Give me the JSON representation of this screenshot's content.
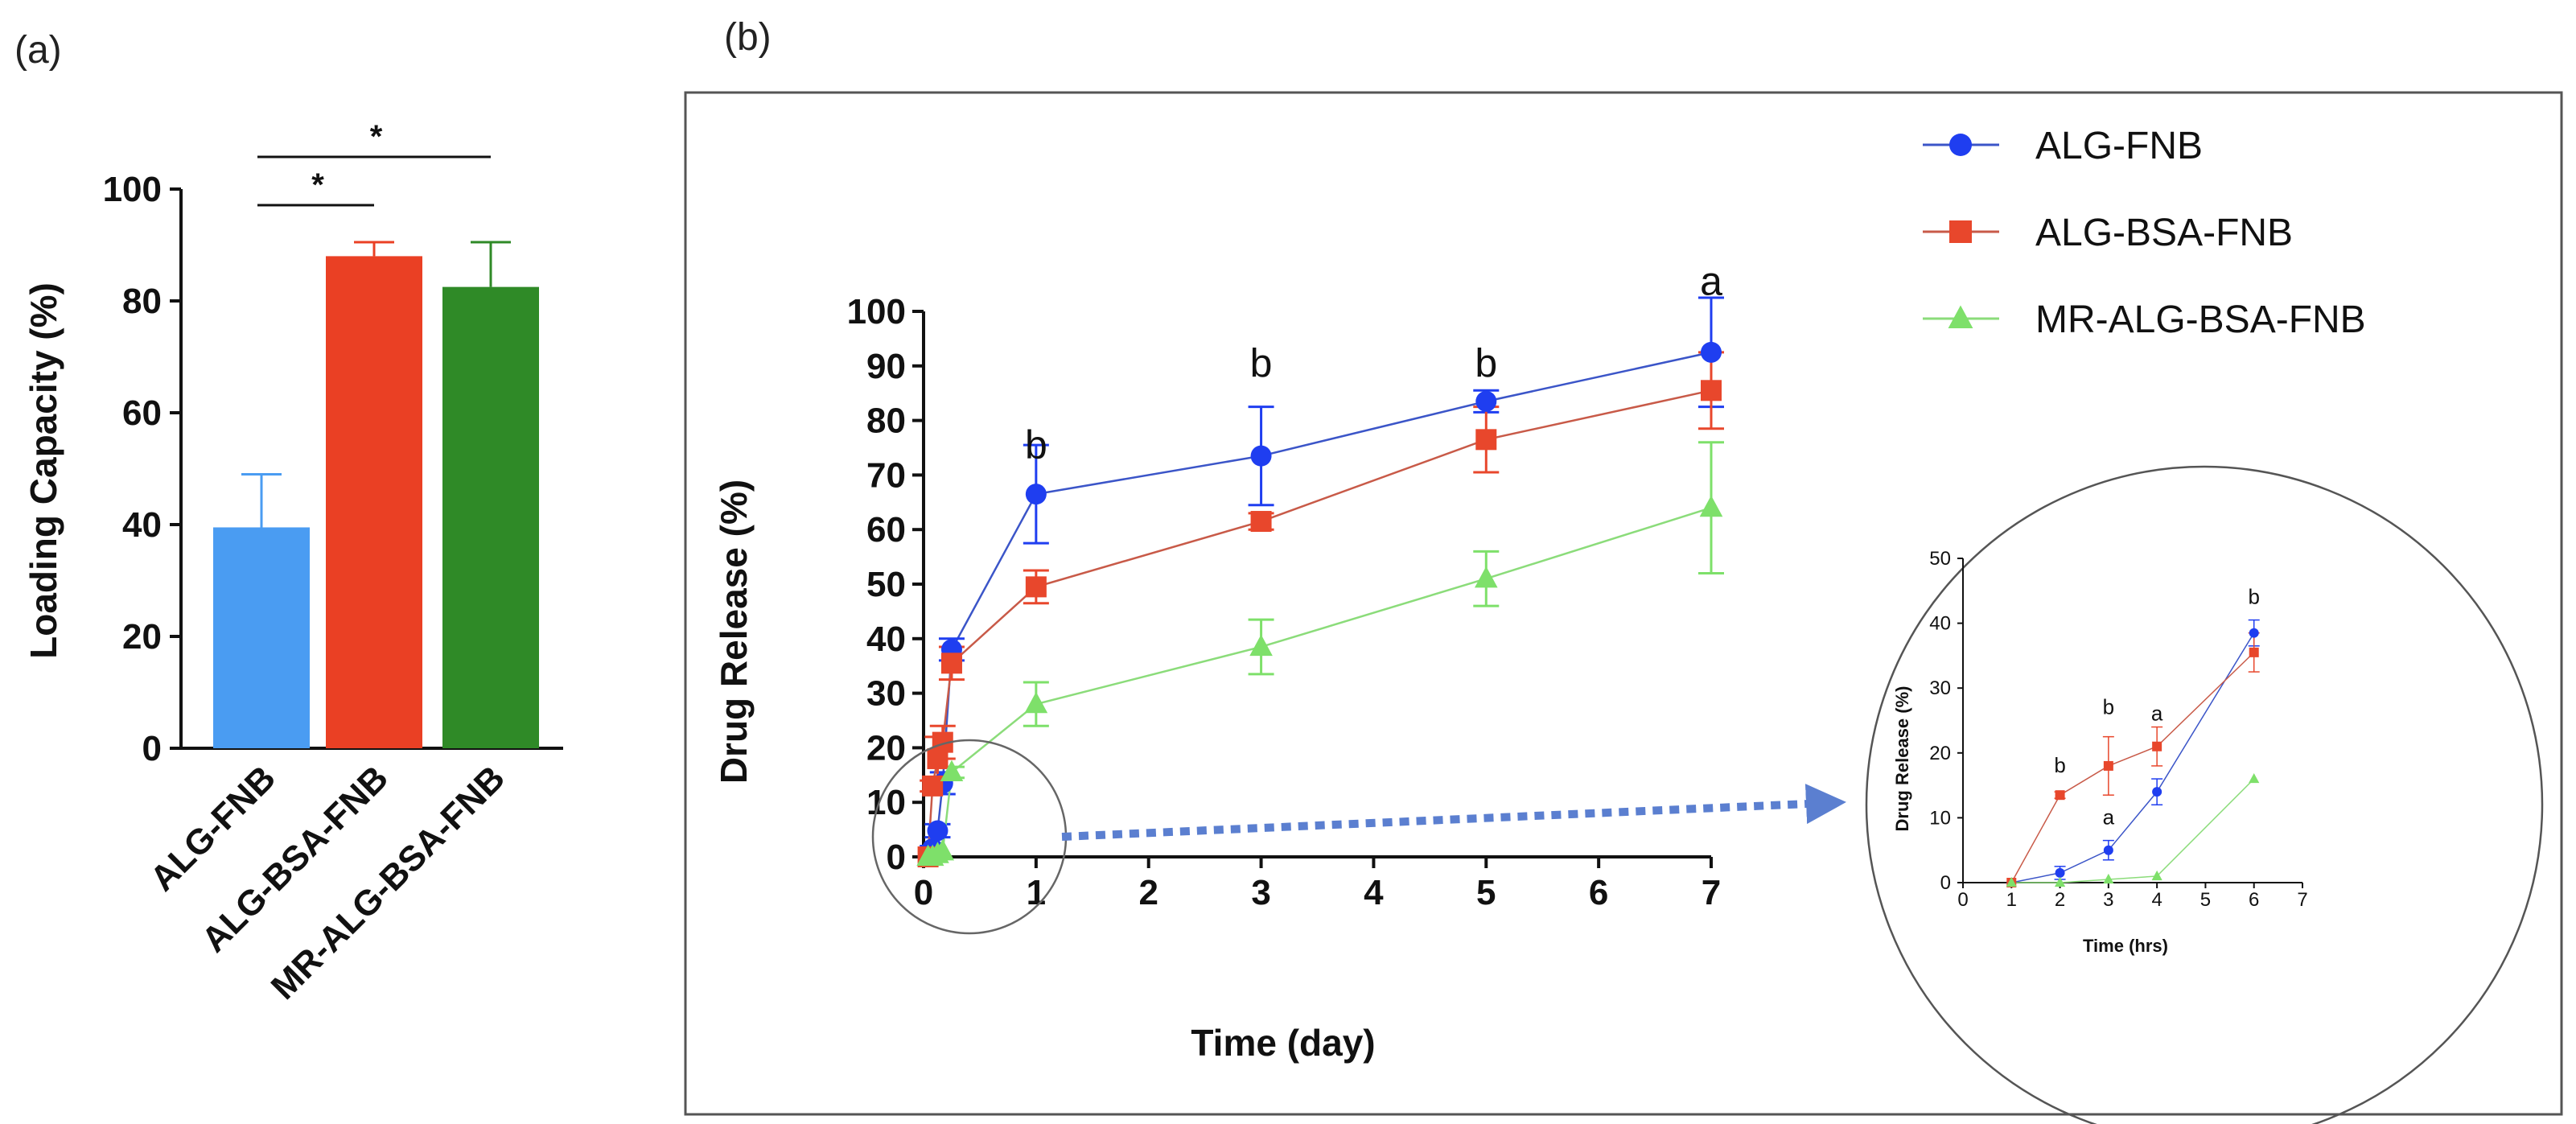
{
  "panel_labels": {
    "a": "(a)",
    "b": "(b)"
  },
  "chart_data": [
    {
      "id": "a",
      "type": "bar",
      "title": "",
      "xlabel": "",
      "ylabel": "Loading Capacity (%)",
      "ylim": [
        0,
        100
      ],
      "yticks": [
        "0",
        "20",
        "40",
        "60",
        "80",
        "100"
      ],
      "categories": [
        "ALG-FNB",
        "ALG-BSA-FNB",
        "MR-ALG-BSA-FNB"
      ],
      "values": [
        39.5,
        88,
        82.5
      ],
      "errors": [
        9.5,
        2.5,
        8
      ],
      "colors": [
        "#4a9cf2",
        "#ea4024",
        "#2f8a27"
      ],
      "significance": [
        {
          "pair": [
            0,
            1
          ],
          "label": "*"
        },
        {
          "pair": [
            0,
            2
          ],
          "label": "*"
        }
      ]
    },
    {
      "id": "b",
      "type": "line",
      "xlabel": "Time (day)",
      "ylabel": "Drug Release (%)",
      "xlim": [
        0,
        7
      ],
      "ylim": [
        0,
        100
      ],
      "xticks": [
        "0",
        "1",
        "2",
        "3",
        "4",
        "5",
        "6",
        "7"
      ],
      "yticks": [
        "0",
        "10",
        "20",
        "30",
        "40",
        "50",
        "60",
        "70",
        "80",
        "90",
        "100"
      ],
      "series": [
        {
          "name": "ALG-FNB",
          "color": "#1f3ef0",
          "line_color": "#3b55c8",
          "marker": "circle",
          "x": [
            0.04,
            0.08,
            0.125,
            0.17,
            0.25,
            1,
            3,
            5,
            7
          ],
          "y": [
            0,
            1.5,
            4.8,
            13.5,
            38,
            66.5,
            73.5,
            83.5,
            92.5
          ],
          "err": [
            0,
            0.5,
            1.2,
            2,
            2,
            9,
            9,
            2,
            10
          ]
        },
        {
          "name": "ALG-BSA-FNB",
          "color": "#e8472c",
          "line_color": "#c85a48",
          "marker": "square",
          "x": [
            0.04,
            0.08,
            0.125,
            0.17,
            0.25,
            1,
            3,
            5,
            7
          ],
          "y": [
            0,
            13,
            18,
            21,
            35.5,
            49.5,
            61.5,
            76.5,
            85.5
          ],
          "err": [
            0,
            1,
            4,
            3,
            3,
            3,
            1.5,
            6,
            7
          ]
        },
        {
          "name": "MR-ALG-BSA-FNB",
          "color": "#7ee06a",
          "line_color": "#8bdc7a",
          "marker": "triangle",
          "x": [
            0.04,
            0.08,
            0.125,
            0.17,
            0.25,
            1,
            3,
            5,
            7
          ],
          "y": [
            0,
            0,
            0.5,
            1,
            15.5,
            28,
            38.5,
            51,
            64
          ],
          "err": [
            0,
            0,
            0,
            0,
            1,
            4,
            5,
            5,
            12
          ]
        }
      ],
      "annotations": [
        {
          "x": 1,
          "y": 73,
          "text": "b"
        },
        {
          "x": 3,
          "y": 88,
          "text": "b"
        },
        {
          "x": 5,
          "y": 88,
          "text": "b"
        },
        {
          "x": 7,
          "y": 103,
          "text": "a"
        }
      ],
      "legend": {
        "position": "top-right",
        "entries": [
          "ALG-FNB",
          "ALG-BSA-FNB",
          "MR-ALG-BSA-FNB"
        ]
      }
    },
    {
      "id": "b-inset",
      "type": "line",
      "xlabel": "Time (hrs)",
      "ylabel": "Drug Release (%)",
      "xlim": [
        0,
        7
      ],
      "ylim": [
        0,
        50
      ],
      "xticks": [
        "0",
        "1",
        "2",
        "3",
        "4",
        "5",
        "6",
        "7"
      ],
      "yticks": [
        "0",
        "10",
        "20",
        "30",
        "40",
        "50"
      ],
      "series": [
        {
          "name": "ALG-FNB",
          "color": "#1f3ef0",
          "line_color": "#3b55c8",
          "marker": "circle",
          "x": [
            1,
            2,
            3,
            4,
            6
          ],
          "y": [
            0,
            1.5,
            5,
            14,
            38.5
          ],
          "err": [
            0,
            1,
            1.5,
            2,
            2
          ]
        },
        {
          "name": "ALG-BSA-FNB",
          "color": "#e8472c",
          "line_color": "#c85a48",
          "marker": "square",
          "x": [
            1,
            2,
            3,
            4,
            6
          ],
          "y": [
            0,
            13.5,
            18,
            21,
            35.5
          ],
          "err": [
            0,
            0.5,
            4.5,
            3,
            3
          ]
        },
        {
          "name": "MR-ALG-BSA-FNB",
          "color": "#7ee06a",
          "line_color": "#8bdc7a",
          "marker": "triangle",
          "x": [
            1,
            2,
            3,
            4,
            6
          ],
          "y": [
            0,
            0,
            0.5,
            1,
            16
          ],
          "err": [
            0,
            0,
            0,
            0,
            0
          ]
        }
      ],
      "annotations": [
        {
          "x": 2,
          "y": 17,
          "text": "b"
        },
        {
          "x": 3,
          "y": 26,
          "text": "b"
        },
        {
          "x": 3,
          "y": 9,
          "text": "a"
        },
        {
          "x": 4,
          "y": 25,
          "text": "a"
        },
        {
          "x": 6,
          "y": 43,
          "text": "b"
        }
      ]
    }
  ]
}
